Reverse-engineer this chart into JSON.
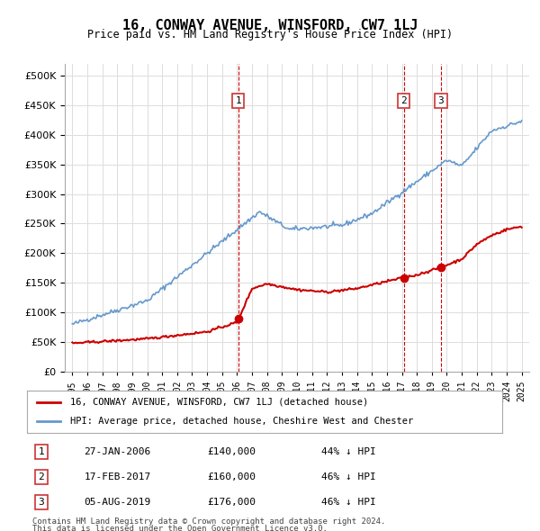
{
  "title": "16, CONWAY AVENUE, WINSFORD, CW7 1LJ",
  "subtitle": "Price paid vs. HM Land Registry's House Price Index (HPI)",
  "legend_red": "16, CONWAY AVENUE, WINSFORD, CW7 1LJ (detached house)",
  "legend_blue": "HPI: Average price, detached house, Cheshire West and Chester",
  "transactions": [
    {
      "num": 1,
      "date": "27-JAN-2006",
      "price": 140000,
      "pct": "44% ↓ HPI",
      "x": 2006.07
    },
    {
      "num": 2,
      "date": "17-FEB-2017",
      "price": 160000,
      "pct": "46% ↓ HPI",
      "x": 2017.12
    },
    {
      "num": 3,
      "date": "05-AUG-2019",
      "price": 176000,
      "pct": "46% ↓ HPI",
      "x": 2019.6
    }
  ],
  "footnote1": "Contains HM Land Registry data © Crown copyright and database right 2024.",
  "footnote2": "This data is licensed under the Open Government Licence v3.0.",
  "ylim": [
    0,
    520000
  ],
  "xlim_start": 1994.5,
  "xlim_end": 2025.5,
  "yticks": [
    0,
    50000,
    100000,
    150000,
    200000,
    250000,
    300000,
    350000,
    400000,
    450000,
    500000
  ],
  "ytick_labels": [
    "£0",
    "£50K",
    "£100K",
    "£150K",
    "£200K",
    "£250K",
    "£300K",
    "£350K",
    "£400K",
    "£450K",
    "£500K"
  ],
  "xticks": [
    1995,
    1996,
    1997,
    1998,
    1999,
    2000,
    2001,
    2002,
    2003,
    2004,
    2005,
    2006,
    2007,
    2008,
    2009,
    2010,
    2011,
    2012,
    2013,
    2014,
    2015,
    2016,
    2017,
    2018,
    2019,
    2020,
    2021,
    2022,
    2023,
    2024,
    2025
  ],
  "red_color": "#cc0000",
  "blue_color": "#6699cc",
  "dashed_color": "#cc0000",
  "bg_color": "#ffffff",
  "grid_color": "#dddddd"
}
